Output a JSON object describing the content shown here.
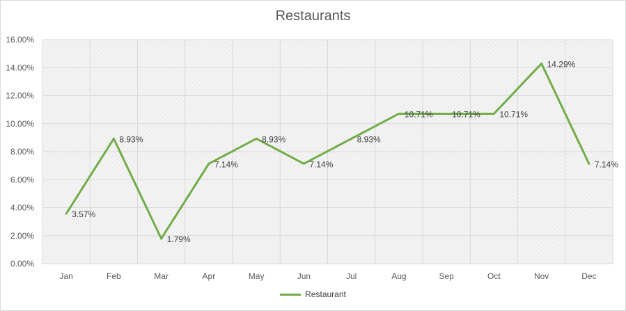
{
  "chart_data": {
    "type": "line",
    "title": "Restaurants",
    "xlabel": "",
    "ylabel": "",
    "categories": [
      "Jan",
      "Feb",
      "Mar",
      "Apr",
      "May",
      "Jun",
      "Jul",
      "Aug",
      "Sep",
      "Oct",
      "Nov",
      "Dec"
    ],
    "ylim": [
      0,
      16
    ],
    "y_ticks": [
      "0.00%",
      "2.00%",
      "4.00%",
      "6.00%",
      "8.00%",
      "10.00%",
      "12.00%",
      "14.00%",
      "16.00%"
    ],
    "grid": true,
    "legend_position": "bottom",
    "series": [
      {
        "name": "Restaurant",
        "color": "#70ad47",
        "values": [
          3.57,
          8.93,
          1.79,
          7.14,
          8.93,
          7.14,
          8.93,
          10.71,
          10.71,
          10.71,
          14.29,
          7.14
        ],
        "labels": [
          "3.57%",
          "8.93%",
          "1.79%",
          "7.14%",
          "8.93%",
          "7.14%",
          "8.93%",
          "10.71%",
          "10.71%",
          "10.71%",
          "14.29%",
          "7.14%"
        ]
      }
    ]
  }
}
